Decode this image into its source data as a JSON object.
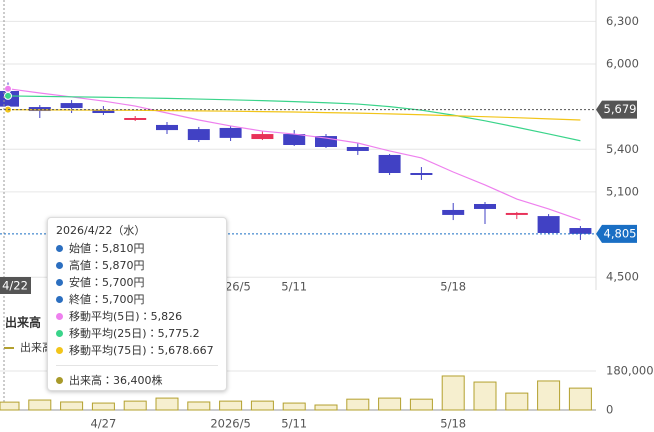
{
  "chart_data": {
    "type": "candlestick",
    "categories": [
      null,
      null,
      null,
      "4/27",
      null,
      null,
      null,
      "2026/5",
      null,
      "5/11",
      null,
      null,
      null,
      null,
      "5/18",
      null,
      null,
      null,
      null
    ],
    "open": [
      5810,
      5697,
      5725,
      5676,
      5606,
      5571,
      5542,
      5550,
      5472,
      5507,
      5493,
      5416,
      5360,
      5233,
      4973,
      5015,
      4938,
      4930,
      4846
    ],
    "high": [
      5870,
      5711,
      5746,
      5704,
      5634,
      5592,
      5557,
      5564,
      5528,
      5535,
      5507,
      5444,
      5367,
      5275,
      5022,
      5029,
      4959,
      4944,
      4860
    ],
    "low": [
      5700,
      5620,
      5655,
      5641,
      5599,
      5507,
      5451,
      5458,
      5465,
      5423,
      5409,
      5360,
      5219,
      5184,
      4902,
      4874,
      4909,
      4804,
      4762
    ],
    "close": [
      5700,
      5669,
      5690,
      5655,
      5620,
      5535,
      5465,
      5480,
      5507,
      5430,
      5416,
      5388,
      5233,
      5219,
      4938,
      4980,
      4952,
      4811,
      4805
    ],
    "up_color": "#e8325a",
    "down_color": "#4141c4",
    "ylim": [
      4410,
      6450
    ],
    "yticks": [
      {
        "value": 4500,
        "label": "4,500"
      },
      {
        "value": 5100,
        "label": "5,100"
      },
      {
        "value": 5400,
        "label": "5,400"
      },
      {
        "value": 6000,
        "label": "6,000"
      },
      {
        "value": 6300,
        "label": "6,300"
      }
    ],
    "grid": true,
    "series": [
      {
        "color": "#ee80ee",
        "values": [
          5826,
          5796,
          5768,
          5739,
          5704,
          5655,
          5606,
          5564,
          5528,
          5507,
          5479,
          5444,
          5388,
          5339,
          5240,
          5149,
          5050,
          4980,
          4902
        ]
      },
      {
        "color": "#3ad48a",
        "values": [
          5775.2,
          5772,
          5769,
          5766,
          5762,
          5758,
          5753,
          5748,
          5742,
          5735,
          5727,
          5718,
          5700,
          5675,
          5640,
          5600,
          5555,
          5508,
          5460
        ]
      },
      {
        "color": "#f2c51a",
        "values": [
          5678.667,
          5677,
          5676,
          5675,
          5674,
          5672,
          5670,
          5668,
          5665,
          5662,
          5658,
          5654,
          5649,
          5643,
          5636,
          5629,
          5622,
          5614,
          5606
        ]
      }
    ],
    "price_lines": [
      {
        "value": 5679,
        "label": "5,679",
        "color": "#555555"
      },
      {
        "value": 4805,
        "label": "4,805",
        "color": "#1a6fc4"
      }
    ],
    "crosshair_label": "4/22",
    "volume": {
      "type": "bar",
      "title": "出来高",
      "legend": "出来高",
      "color": "#b3a02e",
      "fill": "#f6efcf",
      "values": [
        36400,
        46000,
        37000,
        32000,
        41000,
        55000,
        37000,
        41000,
        41000,
        32000,
        23000,
        50000,
        55000,
        50000,
        157000,
        129000,
        78000,
        134000,
        101000
      ],
      "ylim": [
        0,
        180000
      ],
      "yticks": [
        0,
        {
          "value": 180000,
          "label": "180,000"
        }
      ]
    },
    "tooltip": {
      "date": "2026/4/22（水）",
      "rows": [
        {
          "text": "始値：5,810円",
          "color": "#2c6fc0"
        },
        {
          "text": "高値：5,870円",
          "color": "#2c6fc0"
        },
        {
          "text": "安値：5,700円",
          "color": "#2c6fc0"
        },
        {
          "text": "終値：5,700円",
          "color": "#2c6fc0"
        },
        {
          "text": "移動平均(5日)：5,826",
          "color": "#ee80ee"
        },
        {
          "text": "移動平均(25日)：5,775.2",
          "color": "#3ad48a"
        },
        {
          "text": "移動平均(75日)：5,678.667",
          "color": "#f2c51a"
        }
      ],
      "volume": {
        "text": "出来高：36,400株",
        "color": "#a89a2a"
      }
    }
  }
}
